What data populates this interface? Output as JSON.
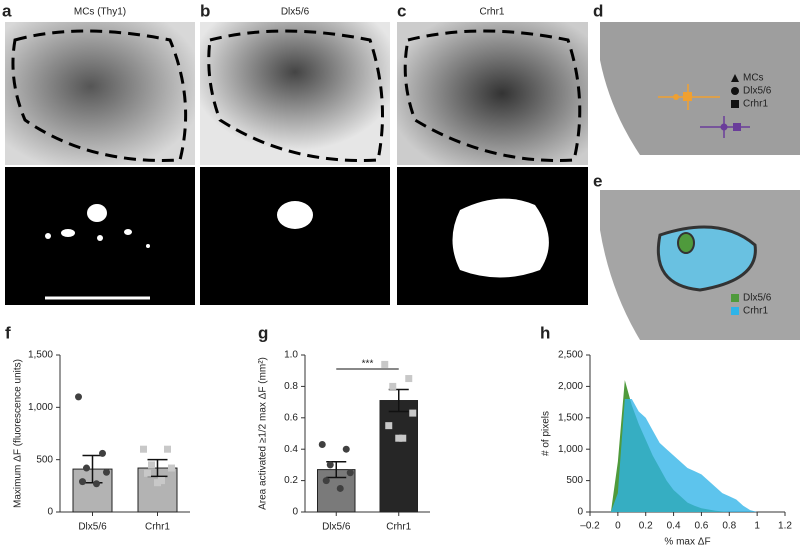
{
  "panels": [
    {
      "letter": "a",
      "title": "MCs (Thy1)"
    },
    {
      "letter": "b",
      "title": "Dlx5/6"
    },
    {
      "letter": "c",
      "title": "Crhr1"
    },
    {
      "letter": "d",
      "legend": [
        "MCs",
        "Dlx5/6",
        "Crhr1"
      ]
    },
    {
      "letter": "e",
      "legend": [
        "Dlx5/6",
        "Crhr1"
      ]
    }
  ],
  "chart_data": [
    {
      "type": "bar",
      "panel": "f",
      "ylabel": "Maximum ΔF (fluorescence units)",
      "categories": [
        "Dlx5/6",
        "Crhr1"
      ],
      "values": [
        410,
        420
      ],
      "errors": [
        130,
        80
      ],
      "points": [
        [
          1100,
          560,
          420,
          380,
          290,
          270
        ],
        [
          600,
          600,
          450,
          420,
          370,
          300,
          280
        ]
      ],
      "colors": [
        "#b3b3b3",
        "#b3b3b3"
      ],
      "point_colors": [
        "#404040",
        "#c8c8c8"
      ],
      "ylim": [
        0,
        1500
      ],
      "yticks": [
        0,
        500,
        {
          "value": 1000,
          "label": "1,000"
        },
        {
          "value": 1500,
          "label": "1,500"
        }
      ]
    },
    {
      "type": "bar",
      "panel": "g",
      "ylabel": "Area activated ≥1/2 max ΔF (mm²)",
      "categories": [
        "Dlx5/6",
        "Crhr1"
      ],
      "values": [
        0.27,
        0.71
      ],
      "errors": [
        0.05,
        0.07
      ],
      "points": [
        [
          0.43,
          0.4,
          0.3,
          0.25,
          0.2,
          0.15
        ],
        [
          0.94,
          0.85,
          0.8,
          0.63,
          0.55,
          0.47,
          0.47
        ]
      ],
      "colors": [
        "#7a7a7a",
        "#262626"
      ],
      "point_colors": [
        "#404040",
        "#c8c8c8"
      ],
      "annotation": "***",
      "ylim": [
        0,
        1.0
      ],
      "yticks": [
        0,
        0.2,
        0.4,
        0.6,
        0.8,
        {
          "value": 1.0,
          "label": "1.0"
        }
      ]
    },
    {
      "type": "area",
      "panel": "h",
      "xlabel": "% max ΔF",
      "ylabel": "# of pixels",
      "x": [
        -0.05,
        0,
        0.05,
        0.1,
        0.15,
        0.2,
        0.25,
        0.3,
        0.35,
        0.4,
        0.45,
        0.5,
        0.55,
        0.6,
        0.65,
        0.7,
        0.75,
        0.8,
        0.85,
        0.9,
        0.95,
        1.0
      ],
      "series": [
        {
          "name": "Dlx5/6",
          "color": "#4f9a3c",
          "values": [
            0,
            800,
            2100,
            1700,
            1400,
            1150,
            900,
            700,
            500,
            350,
            250,
            150,
            100,
            60,
            40,
            20,
            10,
            0,
            0,
            0,
            0,
            0
          ]
        },
        {
          "name": "Crhr1",
          "color": "#2fb4e8",
          "values": [
            0,
            300,
            1800,
            1800,
            1600,
            1500,
            1300,
            1100,
            1000,
            900,
            800,
            700,
            650,
            600,
            500,
            400,
            300,
            250,
            200,
            100,
            30,
            0
          ]
        }
      ],
      "xlim": [
        -0.2,
        1.2
      ],
      "xticks": [
        {
          "value": -0.2,
          "label": "–0.2"
        },
        0,
        0.2,
        0.4,
        0.6,
        0.8,
        1,
        1.2
      ],
      "ylim": [
        0,
        2500
      ],
      "yticks": [
        0,
        500,
        {
          "value": 1000,
          "label": "1,000"
        },
        {
          "value": 1500,
          "label": "1,500"
        },
        {
          "value": 2000,
          "label": "2,000"
        },
        {
          "value": 2500,
          "label": "2,500"
        }
      ]
    }
  ]
}
